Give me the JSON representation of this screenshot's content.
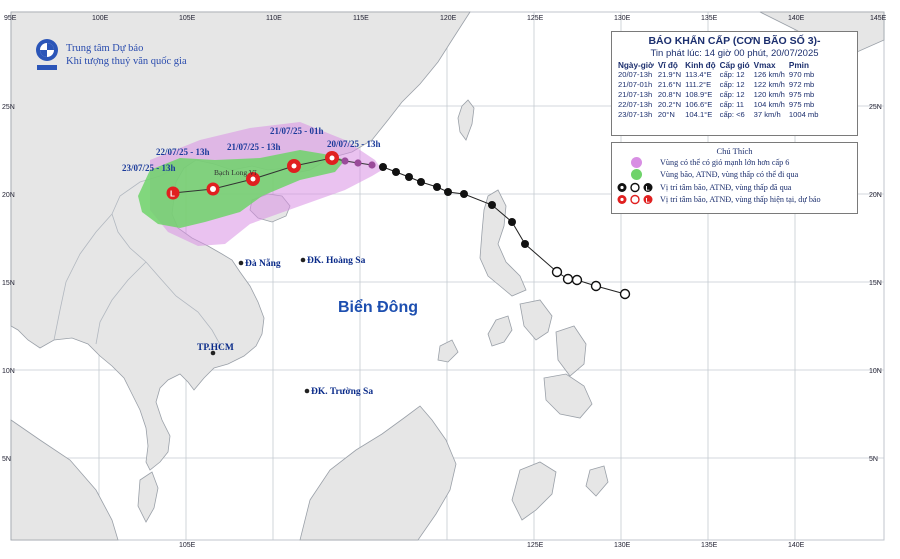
{
  "org": {
    "line1": "Trung tâm Dự báo",
    "line2": "Khí tượng thuỷ văn quốc gia"
  },
  "bulletin": {
    "title": "BÁO KHẨN CẤP (CƠN BÃO SỐ 3)-",
    "issued": "Tin phát lúc: 14 giờ 00 phút, 20/07/2025",
    "columns": [
      "Ngày-giờ",
      "Vĩ độ",
      "Kinh độ",
      "Cấp gió",
      "Vmax",
      "Pmin"
    ],
    "rows": [
      [
        "20/07-13h",
        "21.9°N",
        "113.4°E",
        "cấp: 12",
        "126 km/h",
        "970 mb"
      ],
      [
        "21/07-01h",
        "21.6°N",
        "111.2°E",
        "cấp: 12",
        "122 km/h",
        "972 mb"
      ],
      [
        "21/07-13h",
        "20.8°N",
        "108.9°E",
        "cấp: 12",
        "120 km/h",
        "975 mb"
      ],
      [
        "22/07-13h",
        "20.2°N",
        "106.6°E",
        "cấp: 11",
        "104 km/h",
        "975 mb"
      ],
      [
        "23/07-13h",
        "20°N",
        "104.1°E",
        "cấp: <6",
        "37 km/h",
        "1004 mb"
      ]
    ]
  },
  "legend": {
    "title": "Chú Thích",
    "items": [
      {
        "text": "Vùng có thể có gió mạnh lớn hơn cấp 6",
        "color": "#d88fe3",
        "icon": "purple-dot-icon"
      },
      {
        "text": "Vùng bão, ATNĐ, vùng thấp có thể đi qua",
        "color": "#6fd36a",
        "icon": "green-dot-icon"
      },
      {
        "text": "Vị trí tâm bão, ATNĐ, vùng thấp đã qua",
        "color": "#111111",
        "icon": "past-storm-symbols-icon"
      },
      {
        "text": "Vị trí tâm bão, ATNĐ, vùng thấp hiện tại, dự báo",
        "color": "#e02020",
        "icon": "forecast-storm-symbols-icon"
      }
    ]
  },
  "map": {
    "sea_label": "Biển Đông",
    "places": [
      "Đà Nẵng",
      "ĐK. Hoàng Sa",
      "TP.HCM",
      "ĐK. Trường Sa"
    ],
    "island_label": "Bạch Long Vĩ",
    "lon_ticks": [
      "95E",
      "100E",
      "105E",
      "110E",
      "115E",
      "120E",
      "125E",
      "130E",
      "135E",
      "140E",
      "145E"
    ],
    "lat_ticks": [
      "25N",
      "20N",
      "15N",
      "10N",
      "5N"
    ],
    "forecast_labels": [
      "20/07/25 - 13h",
      "21/07/25 - 01h",
      "21/07/25 - 13h",
      "22/07/25 - 13h",
      "23/07/25 - 13h"
    ],
    "colors": {
      "sea": "#ffffff",
      "land": "#e6e6e6",
      "border": "#9aa0a8",
      "grid": "#c4cad0",
      "strong_wind_zone": "#d88fe3",
      "storm_zone": "#6fd36a",
      "track_past": "#111111",
      "track_forecast": "#e02020"
    }
  }
}
